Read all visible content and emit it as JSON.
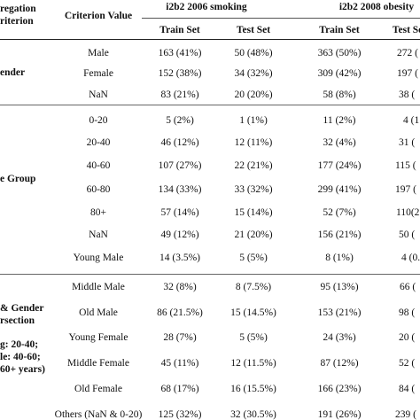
{
  "header": {
    "aggregation_line1": "regation",
    "aggregation_line2": "riterion",
    "criterion_value": "Criterion Value",
    "dataset1": "i2b2 2006 smoking",
    "dataset2": "i2b2 2008 obesity",
    "train_set": "Train Set",
    "test_set": "Test Set"
  },
  "groups": [
    {
      "label_lines": [
        "ender"
      ]
    },
    {
      "label_lines": [
        "e Group"
      ]
    },
    {
      "label_lines": [
        "& Gender",
        "rsection",
        "",
        "g: 20-40;",
        "le: 40-60;",
        "60+ years)"
      ]
    }
  ],
  "rows": [
    {
      "value": "Male",
      "train1": "163 (41%)",
      "test1": "50 (48%)",
      "train2": "363 (50%)",
      "test2": "272 ("
    },
    {
      "value": "Female",
      "train1": "152 (38%)",
      "test1": "34 (32%)",
      "train2": "309 (42%)",
      "test2": "197 ("
    },
    {
      "value": "NaN",
      "train1": "83 (21%)",
      "test1": "20 (20%)",
      "train2": "58 (8%)",
      "test2": "38 ("
    },
    {
      "value": "0-20",
      "train1": "5 (2%)",
      "test1": "1 (1%)",
      "train2": "11 (2%)",
      "test2": "4 (1"
    },
    {
      "value": "20-40",
      "train1": "46 (12%)",
      "test1": "12 (11%)",
      "train2": "32 (4%)",
      "test2": "31 ("
    },
    {
      "value": "40-60",
      "train1": "107 (27%)",
      "test1": "22 (21%)",
      "train2": "177 (24%)",
      "test2": "115 ("
    },
    {
      "value": "60-80",
      "train1": "134 (33%)",
      "test1": "33 (32%)",
      "train2": "299 (41%)",
      "test2": "197 ("
    },
    {
      "value": "80+",
      "train1": "57 (14%)",
      "test1": "15 (14%)",
      "train2": "52 (7%)",
      "test2": "110(2"
    },
    {
      "value": "NaN",
      "train1": "49 (12%)",
      "test1": "21 (20%)",
      "train2": "156 (21%)",
      "test2": "50 ("
    },
    {
      "value": "Young Male",
      "train1": "14 (3.5%)",
      "test1": "5 (5%)",
      "train2": "8 (1%)",
      "test2": "4 (0."
    },
    {
      "value": "Middle Male",
      "train1": "32 (8%)",
      "test1": "8 (7.5%)",
      "train2": "95 (13%)",
      "test2": "66 ("
    },
    {
      "value": "Old Male",
      "train1": "86 (21.5%)",
      "test1": "15 (14.5%)",
      "train2": "153 (21%)",
      "test2": "98 ("
    },
    {
      "value": "Young Female",
      "train1": "28 (7%)",
      "test1": "5 (5%)",
      "train2": "24 (3%)",
      "test2": "20 ("
    },
    {
      "value": "Middle Female",
      "train1": "45 (11%)",
      "test1": "12 (11.5%)",
      "train2": "87 (12%)",
      "test2": "52 ("
    },
    {
      "value": "Old Female",
      "train1": "68 (17%)",
      "test1": "16 (15.5%)",
      "train2": "166 (23%)",
      "test2": "84 ("
    },
    {
      "value": "Others (NaN & 0-20)",
      "train1": "125 (32%)",
      "test1": "32 (30.5%)",
      "train2": "191 (26%)",
      "test2": "239 ("
    }
  ]
}
